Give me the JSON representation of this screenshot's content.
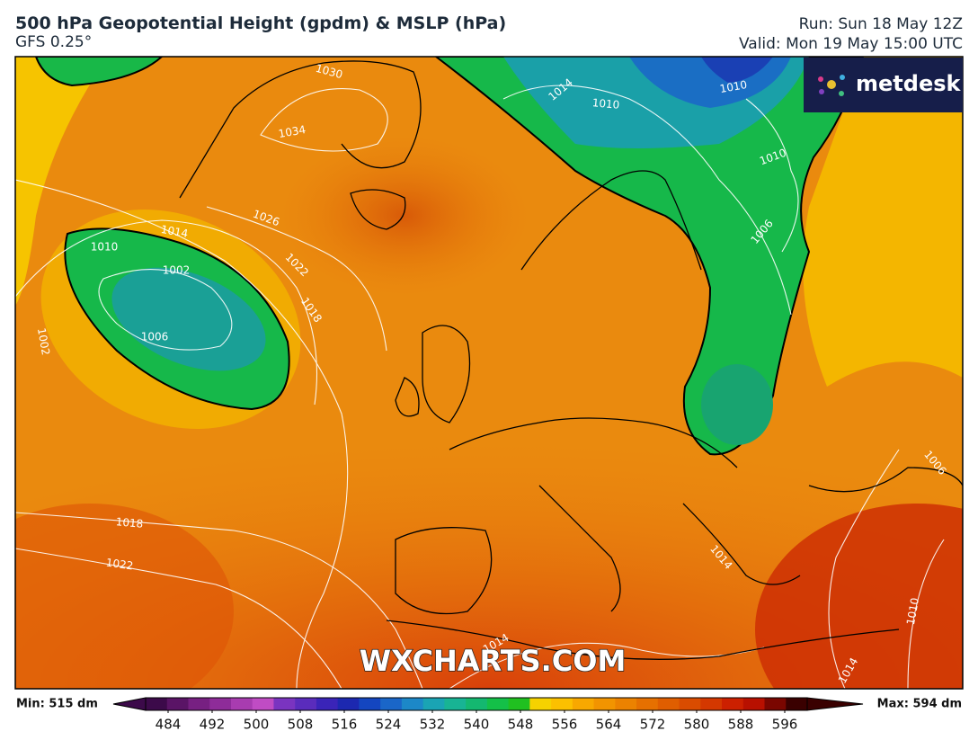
{
  "header": {
    "title": "500 hPa Geopotential Height (gpdm) & MSLP (hPa)",
    "model": "GFS 0.25°",
    "run": "Run: Sun 18 May 12Z",
    "valid": "Valid: Mon 19 May 15:00 UTC"
  },
  "logo": "metdesk",
  "watermark": "WXCHARTS.COM",
  "isobar_labels": [
    "1030",
    "1034",
    "1026",
    "1022",
    "1018",
    "1014",
    "1010",
    "1002",
    "1006",
    "1002",
    "1018",
    "1022",
    "1014",
    "1010",
    "1010",
    "1006",
    "1010",
    "1006",
    "1014",
    "1014",
    "1010",
    "1014"
  ],
  "colorbar": {
    "min_label": "Min: 515 dm",
    "max_label": "Max: 594 dm",
    "ticks": [
      484,
      492,
      500,
      508,
      516,
      524,
      532,
      540,
      548,
      556,
      564,
      572,
      580,
      588,
      596
    ],
    "colors": [
      "#3c0a4a",
      "#5a1466",
      "#772082",
      "#8e2c99",
      "#a83cb0",
      "#c04cc4",
      "#7a34c0",
      "#5a2cbc",
      "#3a24b8",
      "#1c28b0",
      "#1446c0",
      "#1a66c8",
      "#1c88c8",
      "#1aa4b4",
      "#18b494",
      "#14b870",
      "#14c048",
      "#20c020",
      "#f6d200",
      "#fcc000",
      "#f8a800",
      "#f29400",
      "#ec8200",
      "#e67000",
      "#e05e00",
      "#da4c00",
      "#d43800",
      "#cc2000",
      "#b81000",
      "#7a0600",
      "#3a0000"
    ]
  }
}
